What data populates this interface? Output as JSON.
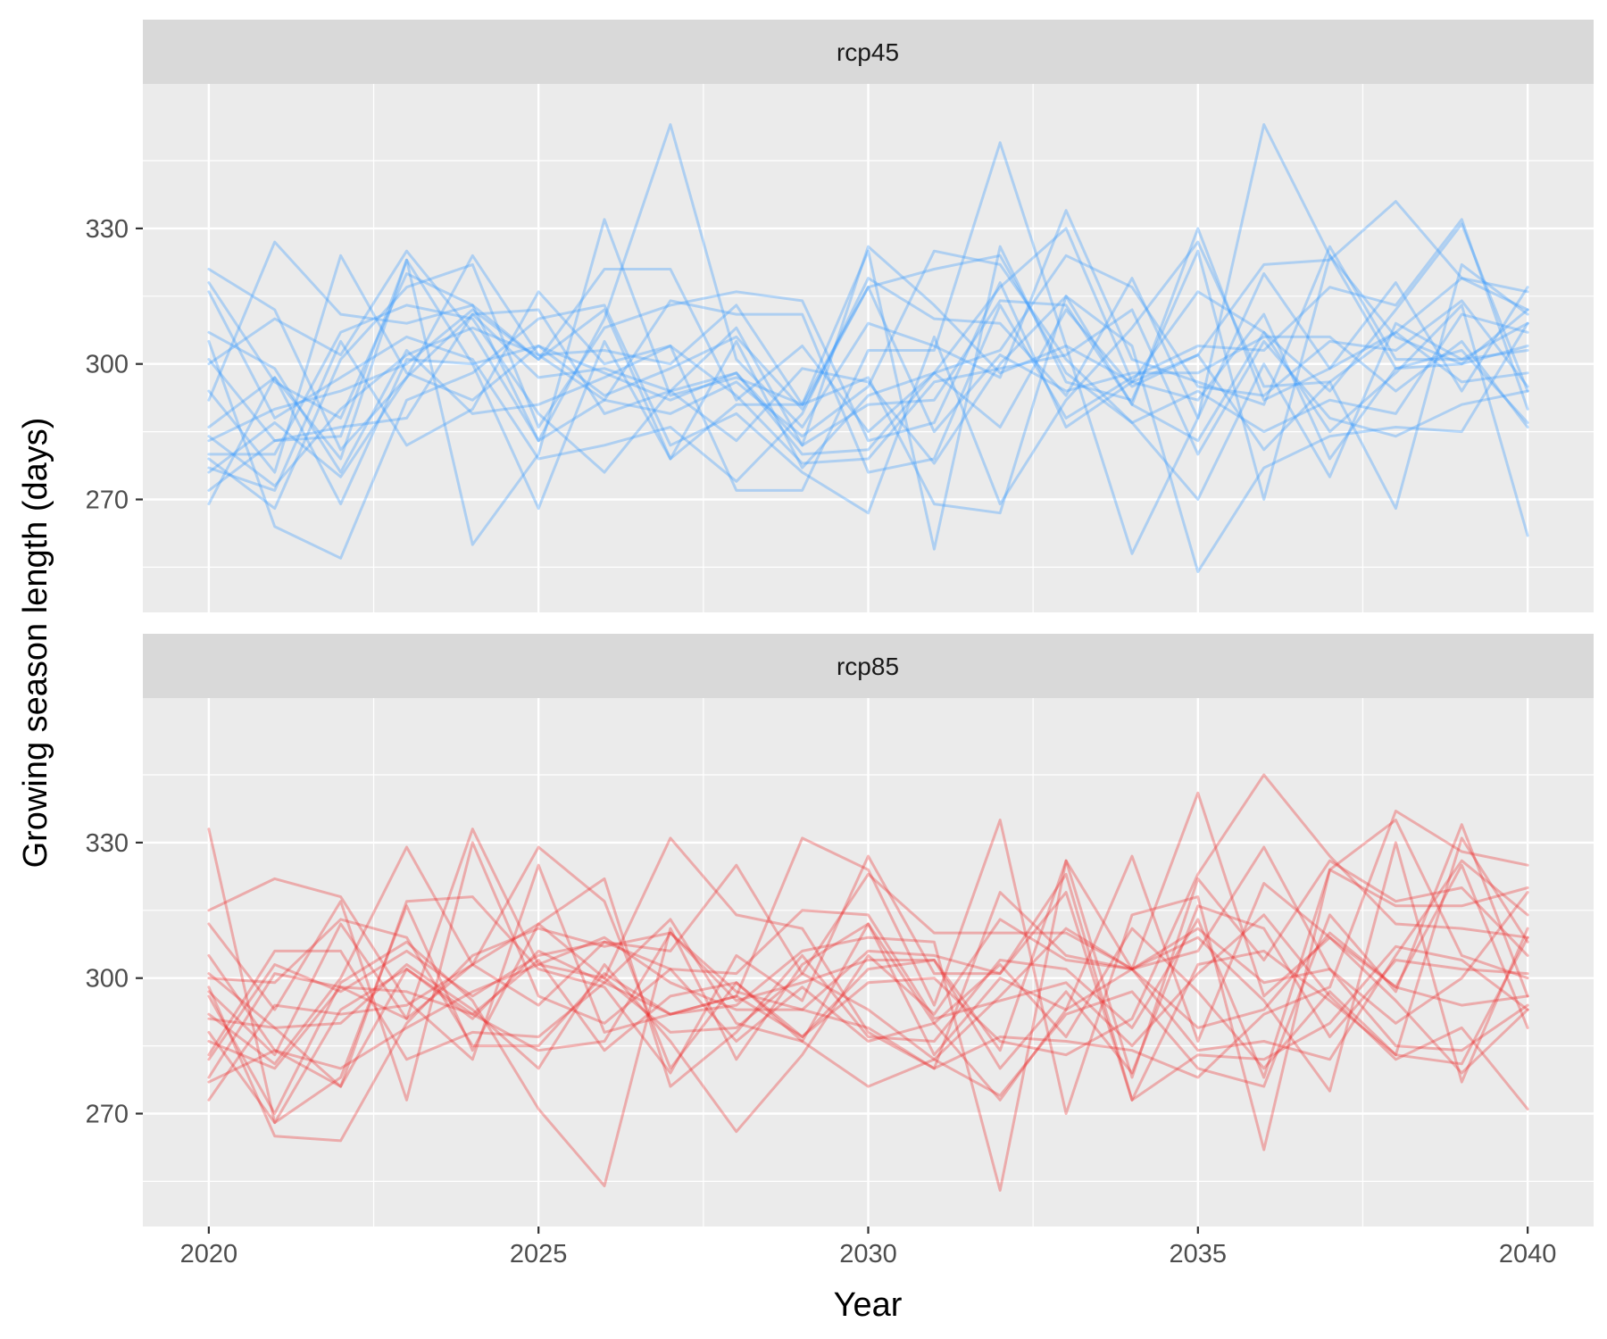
{
  "chart_data": {
    "type": "line",
    "xlabel": "Year",
    "ylabel": "Growing season length (days)",
    "xlim": [
      2019.0,
      2041.0
    ],
    "ylim": [
      245,
      362
    ],
    "x_ticks": [
      2020,
      2025,
      2030,
      2035,
      2040
    ],
    "y_ticks": [
      270,
      300,
      330
    ],
    "x": [
      2020,
      2021,
      2022,
      2023,
      2024,
      2025,
      2026,
      2027,
      2028,
      2029,
      2030,
      2031,
      2032,
      2033,
      2034,
      2035,
      2036,
      2037,
      2038,
      2039,
      2040
    ],
    "panels": [
      {
        "name": "rcp45",
        "color": "#3399ff",
        "series": [
          {
            "values": [
              321,
              312,
              281,
              297,
              311,
              297,
              299,
              294,
              308,
              282,
              326,
              313,
              298,
              304,
              296,
              302,
              322,
              323,
              336,
              319,
              316
            ]
          },
          {
            "values": [
              318,
              296,
              288,
              320,
              313,
              301,
              321,
              321,
              292,
              304,
              285,
              298,
              317,
              330,
              296,
              316,
              307,
              294,
              312,
              331,
              294
            ]
          },
          {
            "values": [
              307,
              299,
              276,
              303,
              289,
              291,
              297,
              304,
              272,
              272,
              303,
              303,
              349,
              304,
              258,
              288,
              353,
              324,
              299,
              303,
              287
            ]
          },
          {
            "values": [
              300,
              310,
              302,
              325,
              307,
              283,
              310,
              353,
              301,
              286,
              309,
              304,
              297,
              334,
              301,
              296,
              291,
              326,
              301,
              301,
              303
            ]
          },
          {
            "values": [
              283,
              290,
              294,
              300,
              312,
              301,
              312,
              279,
              305,
              277,
              293,
              298,
              303,
              324,
              317,
              295,
              293,
              305,
              303,
              314,
              295
            ]
          },
          {
            "values": [
              294,
              276,
              324,
              298,
              292,
              304,
              298,
              292,
              298,
              282,
              291,
              292,
              314,
              313,
              291,
              330,
              292,
              299,
              307,
              296,
              298
            ]
          },
          {
            "values": [
              284,
              273,
              290,
              302,
              308,
              302,
              292,
              314,
              311,
              311,
              276,
              279,
              313,
              288,
              297,
              304,
              303,
              317,
              313,
              332,
              290
            ]
          },
          {
            "values": [
              280,
              280,
              307,
              313,
              310,
              289,
              276,
              294,
              283,
              299,
              296,
              278,
              300,
              315,
              291,
              283,
              307,
              285,
              298,
              313,
              262
            ]
          },
          {
            "values": [
              292,
              327,
              311,
              309,
              313,
              283,
              292,
              289,
              296,
              284,
              295,
              325,
              322,
              301,
              287,
              270,
              300,
              275,
              309,
              301,
              309
            ]
          },
          {
            "values": [
              279,
              268,
              301,
              317,
              322,
              286,
              308,
              313,
              316,
              314,
              283,
              287,
              318,
              286,
              296,
              292,
              311,
              279,
              299,
              300,
              312
            ]
          },
          {
            "values": [
              286,
              297,
              279,
              323,
              260,
              280,
              332,
              293,
              297,
              291,
              297,
              269,
              267,
              315,
              304,
              254,
              277,
              284,
              286,
              285,
              309
            ]
          },
          {
            "values": [
              316,
              288,
              297,
              306,
              301,
              279,
              282,
              286,
              274,
              289,
              319,
              310,
              309,
              293,
              319,
              288,
              320,
              299,
              318,
              294,
              317
            ]
          },
          {
            "values": [
              269,
              297,
              269,
              301,
              300,
              268,
              305,
              279,
              291,
              291,
              325,
              259,
              326,
              296,
              292,
              325,
              270,
              324,
              306,
              300,
              304
            ]
          },
          {
            "values": [
              305,
              264,
              257,
              292,
              298,
              310,
              313,
              282,
              289,
              276,
              267,
              306,
              269,
              292,
              308,
              327,
              295,
              296,
              307,
              319,
              312
            ]
          },
          {
            "values": [
              272,
              283,
              286,
              288,
              311,
              312,
              289,
              294,
              298,
              280,
              281,
              298,
              286,
              312,
              295,
              302,
              281,
              296,
              268,
              322,
              311
            ]
          },
          {
            "values": [
              276,
              287,
              275,
              297,
              324,
              302,
              303,
              300,
              313,
              291,
              317,
              321,
              324,
              298,
              287,
              294,
              285,
              292,
              289,
              311,
              307
            ]
          },
          {
            "values": [
              301,
              283,
              284,
              323,
              300,
              304,
              293,
              299,
              306,
              290,
              317,
              285,
              302,
              294,
              298,
              298,
              306,
              306,
              294,
              305,
              286
            ]
          },
          {
            "values": [
              277,
              272,
              305,
              282,
              290,
              316,
              300,
              304,
              293,
              278,
              279,
              296,
              299,
              302,
              312,
              280,
              305,
              288,
              284,
              291,
              294
            ]
          }
        ]
      },
      {
        "name": "rcp85",
        "color": "#ee2c2c",
        "series": [
          {
            "values": [
              333,
              268,
              293,
              302,
              292,
              304,
              284,
              296,
              299,
              287,
              302,
              304,
              284,
              326,
              278,
              322,
              304,
              326,
              317,
              320,
              305
            ]
          },
          {
            "values": [
              315,
              322,
              318,
              295,
              282,
              325,
              288,
              292,
              296,
              331,
              324,
              294,
              335,
              270,
              314,
              318,
              262,
              324,
              335,
              305,
              300
            ]
          },
          {
            "values": [
              312,
              293,
              317,
              273,
              330,
              296,
              290,
              302,
              286,
              298,
              286,
              290,
              273,
              293,
              327,
              286,
              321,
              309,
              298,
              325,
              289
            ]
          },
          {
            "values": [
              301,
              289,
              276,
              317,
              318,
              302,
              298,
              279,
              305,
              295,
              327,
              301,
              301,
              323,
              273,
              303,
              306,
              295,
              283,
              331,
              308
            ]
          },
          {
            "values": [
              297,
              283,
              312,
              291,
              333,
              303,
              300,
              288,
              289,
              301,
              293,
              282,
              296,
              311,
              302,
              306,
              329,
              302,
              290,
              300,
              319
            ]
          },
          {
            "values": [
              292,
              281,
              300,
              329,
              303,
              329,
              317,
              280,
              299,
              286,
              312,
              290,
              303,
              287,
              311,
              297,
              280,
              297,
              283,
              281,
              309
            ]
          },
          {
            "values": [
              278,
              301,
              298,
              291,
              303,
              312,
              300,
              331,
              314,
              311,
              288,
              280,
              319,
              305,
              302,
              284,
              286,
              282,
              305,
              326,
              314
            ]
          },
          {
            "values": [
              288,
              268,
              278,
              316,
              284,
              312,
              322,
              276,
              288,
              305,
              287,
              286,
              304,
              302,
              289,
              313,
              278,
              324,
              316,
              316,
              320
            ]
          },
          {
            "values": [
              286,
              280,
              298,
              297,
              292,
              284,
              286,
              310,
              295,
              299,
              304,
              304,
              280,
              297,
              279,
              316,
              311,
              287,
              304,
              302,
              301
            ]
          },
          {
            "values": [
              296,
              270,
              299,
              308,
              295,
              271,
              254,
              311,
              282,
              303,
              312,
              283,
              300,
              293,
              302,
              341,
              296,
              309,
              295,
              279,
              293
            ]
          },
          {
            "values": [
              300,
              299,
              313,
              309,
              285,
              285,
              301,
              292,
              296,
              287,
              299,
              300,
              286,
              283,
              291,
              323,
              345,
              327,
              312,
              311,
              309
            ]
          },
          {
            "values": [
              298,
              265,
              264,
              290,
              305,
              311,
              307,
              310,
              297,
              293,
              289,
              280,
              287,
              286,
              284,
              278,
              292,
              298,
              337,
              328,
              325
            ]
          },
          {
            "values": [
              283,
              306,
              306,
              282,
              288,
              287,
              299,
              313,
              290,
              286,
              276,
              282,
              274,
              292,
              297,
              280,
              276,
              314,
              297,
              334,
              296
            ]
          },
          {
            "values": [
              291,
              289,
              290,
              303,
              293,
              280,
              303,
              286,
              266,
              283,
              305,
              292,
              313,
              304,
              302,
              289,
              293,
              310,
              298,
              294,
              296
            ]
          },
          {
            "values": [
              282,
              303,
              297,
              306,
              296,
              305,
              308,
              306,
              325,
              301,
              323,
              310,
              310,
              310,
              302,
              311,
              299,
              302,
              285,
              284,
              294
            ]
          },
          {
            "values": [
              273,
              294,
              292,
              294,
              303,
              294,
              308,
              302,
              301,
              315,
              314,
              291,
              295,
              299,
              285,
              301,
              314,
              296,
              282,
              289,
              271
            ]
          },
          {
            "values": [
              305,
              284,
              280,
              289,
              297,
              303,
              309,
              299,
              293,
              293,
              306,
              305,
              301,
              319,
              273,
              283,
              282,
              290,
              307,
              304,
              293
            ]
          },
          {
            "values": [
              277,
              284,
              276,
              302,
              291,
              306,
              299,
              292,
              294,
              306,
              309,
              308,
              253,
              326,
              302,
              309,
              295,
              275,
              330,
              277,
              311
            ]
          }
        ]
      }
    ]
  }
}
